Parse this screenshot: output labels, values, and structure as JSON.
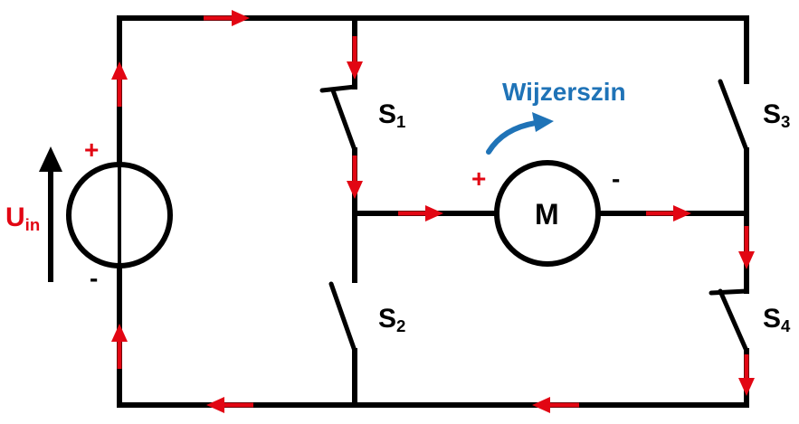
{
  "colors": {
    "wire": "#000000",
    "current": "#e20613",
    "rotation": "#1f73b7",
    "label_red": "#e20613"
  },
  "source": {
    "label_main": "U",
    "label_sub": "in",
    "plus": "+",
    "minus": "-"
  },
  "motor": {
    "label": "M",
    "plus": "+",
    "minus": "-"
  },
  "rotation": {
    "label": "Wijzerszin"
  },
  "switches": [
    {
      "main": "S",
      "sub": "1",
      "state": "closed"
    },
    {
      "main": "S",
      "sub": "2",
      "state": "open"
    },
    {
      "main": "S",
      "sub": "3",
      "state": "open"
    },
    {
      "main": "S",
      "sub": "4",
      "state": "closed"
    }
  ]
}
